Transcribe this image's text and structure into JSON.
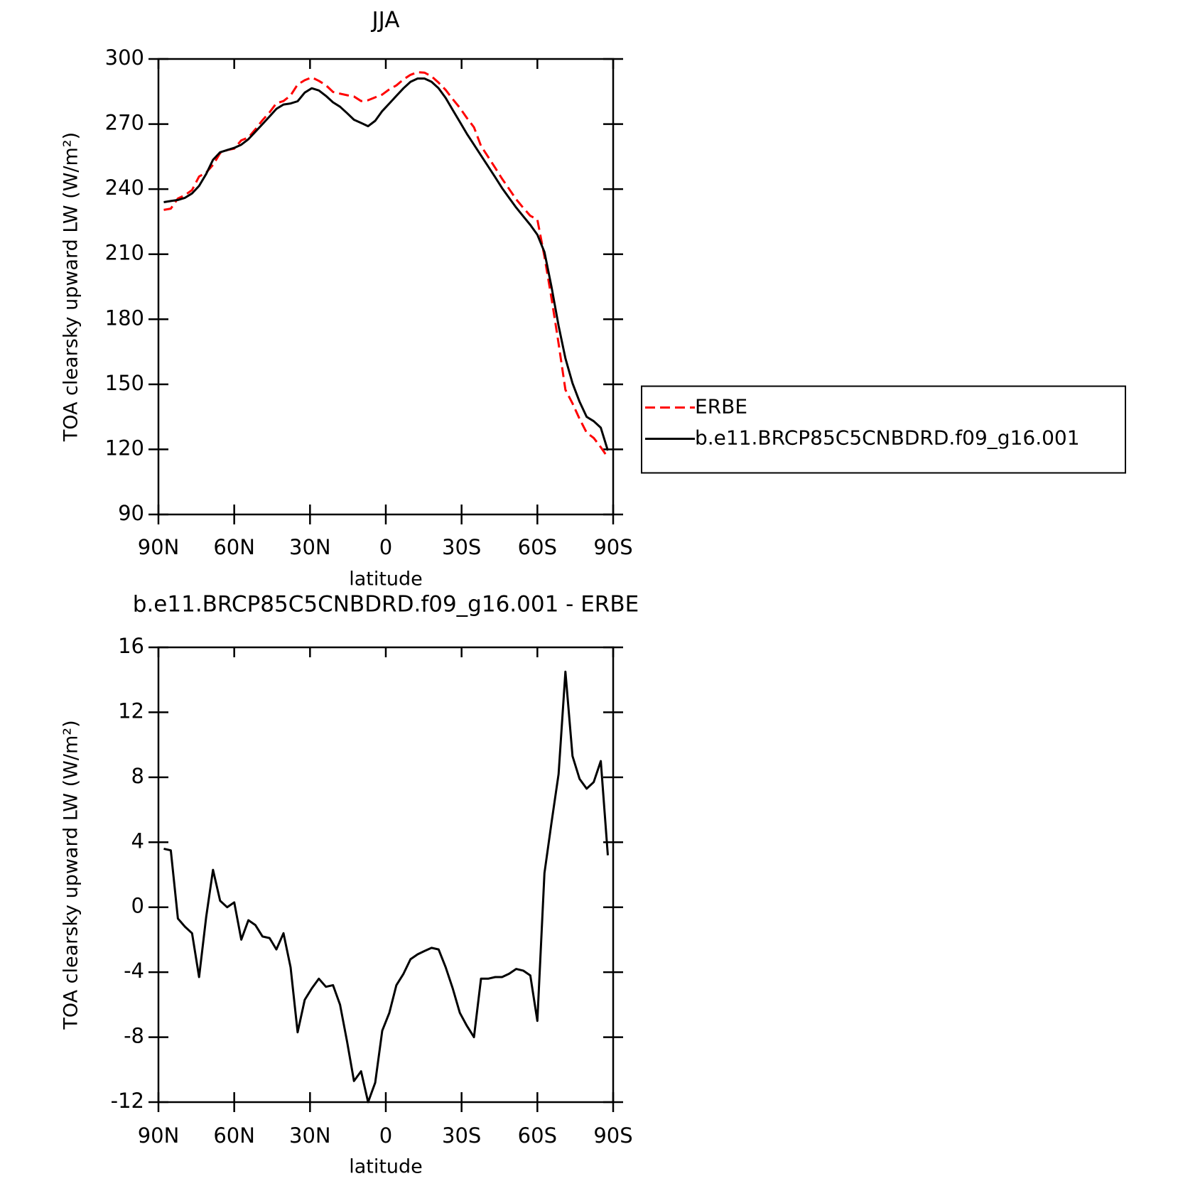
{
  "chart_data": [
    {
      "type": "line",
      "title": "JJA",
      "xlabel": "latitude",
      "ylabel": "TOA clearsky upward LW (W/m²)",
      "x": [
        87.9,
        85.1,
        82.3,
        79.5,
        76.7,
        73.9,
        71.1,
        68.4,
        65.6,
        62.8,
        60.0,
        57.2,
        54.4,
        51.6,
        48.8,
        46.0,
        43.3,
        40.5,
        37.7,
        34.9,
        32.1,
        29.3,
        26.5,
        23.7,
        20.9,
        18.1,
        15.3,
        12.6,
        9.8,
        7.0,
        4.2,
        1.4,
        -1.4,
        -4.2,
        -7.0,
        -9.8,
        -12.6,
        -15.3,
        -18.1,
        -20.9,
        -23.7,
        -26.5,
        -29.3,
        -32.1,
        -34.9,
        -37.7,
        -40.5,
        -43.3,
        -46.0,
        -48.8,
        -51.6,
        -54.4,
        -57.2,
        -60.0,
        -62.8,
        -65.6,
        -68.4,
        -71.1,
        -73.9,
        -76.7,
        -79.5,
        -82.3,
        -85.1,
        -87.9
      ],
      "series": [
        {
          "name": "ERBE",
          "color": "#ff0000",
          "linestyle": "dashed",
          "values": [
            230.4,
            231,
            235.7,
            237.2,
            239.6,
            245.8,
            247.6,
            251.2,
            256.6,
            258,
            258.7,
            262.5,
            263.8,
            267.6,
            271.8,
            275.4,
            279.6,
            280.6,
            283.2,
            288.2,
            290.2,
            291.5,
            289.9,
            287.9,
            284.8,
            284,
            283.3,
            282.7,
            280.6,
            281,
            282.3,
            283.6,
            286,
            287.8,
            290.6,
            292.7,
            293.9,
            293.7,
            292,
            289.1,
            285.7,
            281.5,
            277.5,
            272.8,
            268.5,
            259.9,
            254.9,
            249.8,
            244.8,
            240.1,
            235.3,
            231.4,
            227.7,
            226,
            208.9,
            189.8,
            168.8,
            147.5,
            141.2,
            134.1,
            127.7,
            125.3,
            121,
            116.3
          ]
        },
        {
          "name": "b.e11.BRCP85C5CNBDRD.f09_g16.001",
          "color": "#000000",
          "linestyle": "solid",
          "values": [
            234,
            234.5,
            235,
            236,
            238,
            241.5,
            247,
            253.5,
            257,
            258,
            259,
            260.5,
            263,
            266.5,
            270,
            273.5,
            277,
            279,
            279.5,
            280.5,
            284.5,
            286.5,
            285.5,
            283,
            280,
            278,
            275,
            272,
            270.5,
            269,
            271.5,
            276,
            279.5,
            283,
            286.5,
            289.5,
            291,
            291,
            289.5,
            286.5,
            282,
            276.5,
            271,
            265.5,
            260.5,
            255.5,
            250.5,
            245.5,
            240.5,
            236,
            231.5,
            227.5,
            223.5,
            219,
            211,
            195,
            177,
            162,
            150.5,
            142,
            135,
            133,
            130,
            119.5
          ]
        }
      ],
      "xlim": [
        90,
        -90
      ],
      "xticks": [
        {
          "value": 90,
          "label": "90N"
        },
        {
          "value": 60,
          "label": "60N"
        },
        {
          "value": 30,
          "label": "30N"
        },
        0,
        {
          "value": -30,
          "label": "30S"
        },
        {
          "value": -60,
          "label": "60S"
        },
        {
          "value": -90,
          "label": "90S"
        }
      ],
      "ylim": [
        90,
        300
      ],
      "yticks": [
        90,
        120,
        150,
        180,
        210,
        240,
        270,
        300
      ],
      "legend": "right"
    },
    {
      "type": "line",
      "title": "b.e11.BRCP85C5CNBDRD.f09_g16.001 - ERBE",
      "xlabel": "latitude",
      "ylabel": "TOA clearsky upward LW (W/m²)",
      "x": [
        87.9,
        85.1,
        82.3,
        79.5,
        76.7,
        73.9,
        71.1,
        68.4,
        65.6,
        62.8,
        60.0,
        57.2,
        54.4,
        51.6,
        48.8,
        46.0,
        43.3,
        40.5,
        37.7,
        34.9,
        32.1,
        29.3,
        26.5,
        23.7,
        20.9,
        18.1,
        15.3,
        12.6,
        9.8,
        7.0,
        4.2,
        1.4,
        -1.4,
        -4.2,
        -7.0,
        -9.8,
        -12.6,
        -15.3,
        -18.1,
        -20.9,
        -23.7,
        -26.5,
        -29.3,
        -32.1,
        -34.9,
        -37.7,
        -40.5,
        -43.3,
        -46.0,
        -48.8,
        -51.6,
        -54.4,
        -57.2,
        -60.0,
        -62.8,
        -65.6,
        -68.4,
        -71.1,
        -73.9,
        -76.7,
        -79.5,
        -82.3,
        -85.1,
        -87.9
      ],
      "values": [
        3.6,
        3.5,
        -0.7,
        -1.2,
        -1.6,
        -4.3,
        -0.6,
        2.3,
        0.4,
        0,
        0.3,
        -2,
        -0.8,
        -1.1,
        -1.8,
        -1.9,
        -2.6,
        -1.6,
        -3.7,
        -7.7,
        -5.7,
        -5,
        -4.4,
        -4.9,
        -4.8,
        -6,
        -8.3,
        -10.7,
        -10.1,
        -12,
        -10.8,
        -7.6,
        -6.5,
        -4.8,
        -4.1,
        -3.2,
        -2.9,
        -2.7,
        -2.5,
        -2.6,
        -3.7,
        -5,
        -6.5,
        -7.3,
        -8,
        -4.4,
        -4.4,
        -4.3,
        -4.3,
        -4.1,
        -3.8,
        -3.9,
        -4.2,
        -7,
        2.1,
        5.2,
        8.2,
        14.5,
        9.3,
        7.9,
        7.3,
        7.7,
        9,
        3.2
      ],
      "color": "#000000",
      "xlim": [
        90,
        -90
      ],
      "xticks": [
        {
          "value": 90,
          "label": "90N"
        },
        {
          "value": 60,
          "label": "60N"
        },
        {
          "value": 30,
          "label": "30N"
        },
        0,
        {
          "value": -30,
          "label": "30S"
        },
        {
          "value": -60,
          "label": "60S"
        },
        {
          "value": -90,
          "label": "90S"
        }
      ],
      "ylim": [
        -12,
        16
      ],
      "yticks": [
        -12,
        -8,
        -4,
        0,
        4,
        8,
        12,
        16
      ]
    }
  ]
}
